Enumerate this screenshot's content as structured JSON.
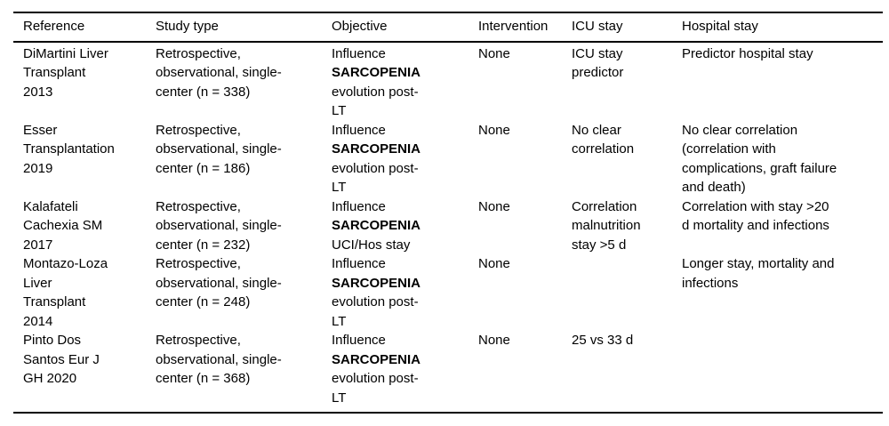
{
  "colors": {
    "text": "#000000",
    "background": "#ffffff",
    "rule": "#000000"
  },
  "table": {
    "columns": [
      "Reference",
      "Study type",
      "Objective",
      "Intervention",
      "ICU stay",
      "Hospital stay"
    ],
    "rows": [
      {
        "reference": "DiMartini Liver\nTransplant\n2013",
        "study_type": "Retrospective,\nobservational, single-\ncenter (n = 338)",
        "objective_pre": "Influence",
        "objective_bold": "SARCOPENIA",
        "objective_post": "evolution post-\nLT",
        "intervention": "None",
        "icu_stay": "ICU stay\npredictor",
        "hospital_stay": "Predictor hospital stay"
      },
      {
        "reference": "Esser\nTransplantation\n2019",
        "study_type": "Retrospective,\nobservational, single-\ncenter (n = 186)",
        "objective_pre": "Influence",
        "objective_bold": "SARCOPENIA",
        "objective_post": "evolution post-\nLT",
        "intervention": "None",
        "icu_stay": "No clear\ncorrelation",
        "hospital_stay": "No clear correlation\n(correlation with\ncomplications, graft failure\nand death)"
      },
      {
        "reference": "Kalafateli\nCachexia SM\n2017",
        "study_type": "Retrospective,\nobservational, single-\ncenter (n = 232)",
        "objective_pre": "Influence",
        "objective_bold": "SARCOPENIA",
        "objective_post": "UCI/Hos stay",
        "intervention": "None",
        "icu_stay": "Correlation\nmalnutrition\nstay >5 d",
        "hospital_stay": "Correlation with stay >20\nd mortality and infections"
      },
      {
        "reference": "Montazo-Loza\nLiver\nTransplant\n2014",
        "study_type": "Retrospective,\nobservational, single-\ncenter (n = 248)",
        "objective_pre": "Influence",
        "objective_bold": "SARCOPENIA",
        "objective_post": "evolution post-\nLT",
        "intervention": "None",
        "icu_stay": "",
        "hospital_stay": "Longer stay, mortality and\ninfections"
      },
      {
        "reference": "Pinto Dos\nSantos Eur J\nGH 2020",
        "study_type": "Retrospective,\nobservational, single-\ncenter (n = 368)",
        "objective_pre": "Influence",
        "objective_bold": "SARCOPENIA",
        "objective_post": "evolution post-\nLT",
        "intervention": "None",
        "icu_stay": "25 vs 33 d",
        "hospital_stay": ""
      }
    ]
  }
}
